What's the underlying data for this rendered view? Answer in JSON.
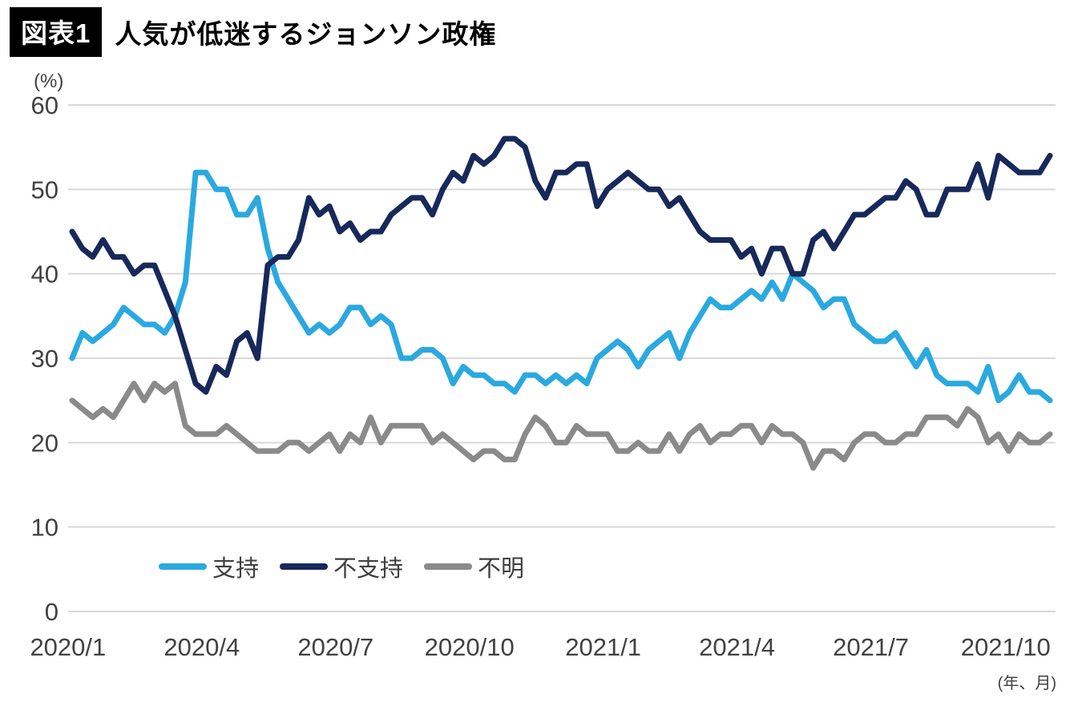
{
  "header": {
    "badge": "図表1",
    "title": "人気が低迷するジョンソン政権"
  },
  "axes": {
    "y_unit": "(%)",
    "x_unit": "(年、月)"
  },
  "colors": {
    "grid": "#d9d9d9",
    "axis_text": "#414141",
    "approve": "#2aa9e0",
    "disapprove": "#17295a",
    "unknown": "#8a8a8a"
  },
  "chart_data": {
    "type": "line",
    "title": "人気が低迷するジョンソン政権",
    "y_unit": "(%)",
    "x_unit": "(年、月)",
    "ylim": [
      0,
      60
    ],
    "y_ticks": [
      0,
      10,
      20,
      30,
      40,
      50,
      60
    ],
    "grid": true,
    "legend_position": "bottom",
    "x_ticks": [
      {
        "label": "2020/1",
        "pos": -0.4
      },
      {
        "label": "2020/4",
        "pos": 12.6
      },
      {
        "label": "2020/7",
        "pos": 25.6
      },
      {
        "label": "2020/10",
        "pos": 38.6
      },
      {
        "label": "2021/1",
        "pos": 51.6
      },
      {
        "label": "2021/4",
        "pos": 64.6
      },
      {
        "label": "2021/7",
        "pos": 77.6
      },
      {
        "label": "2021/10",
        "pos": 90.7
      }
    ],
    "series": [
      {
        "name": "支持",
        "color": "#2aa9e0",
        "values": [
          30,
          33,
          32,
          33,
          34,
          36,
          35,
          34,
          34,
          33,
          35,
          39,
          52,
          52,
          50,
          50,
          47,
          47,
          49,
          43,
          39,
          37,
          35,
          33,
          34,
          33,
          34,
          36,
          36,
          34,
          35,
          34,
          30,
          30,
          31,
          31,
          30,
          27,
          29,
          28,
          28,
          27,
          27,
          26,
          28,
          28,
          27,
          28,
          27,
          28,
          27,
          30,
          31,
          32,
          31,
          29,
          31,
          32,
          33,
          30,
          33,
          35,
          37,
          36,
          36,
          37,
          38,
          37,
          39,
          37,
          40,
          39,
          38,
          36,
          37,
          37,
          34,
          33,
          32,
          32,
          33,
          31,
          29,
          31,
          28,
          27,
          27,
          27,
          26,
          29,
          25,
          26,
          28,
          26,
          26,
          25
        ]
      },
      {
        "name": "不支持",
        "color": "#17295a",
        "values": [
          45,
          43,
          42,
          44,
          42,
          42,
          40,
          41,
          41,
          38,
          35,
          31,
          27,
          26,
          29,
          28,
          32,
          33,
          30,
          41,
          42,
          42,
          44,
          49,
          47,
          48,
          45,
          46,
          44,
          45,
          45,
          47,
          48,
          49,
          49,
          47,
          50,
          52,
          51,
          54,
          53,
          54,
          56,
          56,
          55,
          51,
          49,
          52,
          52,
          53,
          53,
          48,
          50,
          51,
          52,
          51,
          50,
          50,
          48,
          49,
          47,
          45,
          44,
          44,
          44,
          42,
          43,
          40,
          43,
          43,
          40,
          40,
          44,
          45,
          43,
          45,
          47,
          47,
          48,
          49,
          49,
          51,
          50,
          47,
          47,
          50,
          50,
          50,
          53,
          49,
          54,
          53,
          52,
          52,
          52,
          54
        ]
      },
      {
        "name": "不明",
        "color": "#8a8a8a",
        "values": [
          25,
          24,
          23,
          24,
          23,
          25,
          27,
          25,
          27,
          26,
          27,
          22,
          21,
          21,
          21,
          22,
          21,
          20,
          19,
          19,
          19,
          20,
          20,
          19,
          20,
          21,
          19,
          21,
          20,
          23,
          20,
          22,
          22,
          22,
          22,
          20,
          21,
          20,
          19,
          18,
          19,
          19,
          18,
          18,
          21,
          23,
          22,
          20,
          20,
          22,
          21,
          21,
          21,
          19,
          19,
          20,
          19,
          19,
          21,
          19,
          21,
          22,
          20,
          21,
          21,
          22,
          22,
          20,
          22,
          21,
          21,
          20,
          17,
          19,
          19,
          18,
          20,
          21,
          21,
          20,
          20,
          21,
          21,
          23,
          23,
          23,
          22,
          24,
          23,
          20,
          21,
          19,
          21,
          20,
          20,
          21
        ]
      }
    ]
  }
}
